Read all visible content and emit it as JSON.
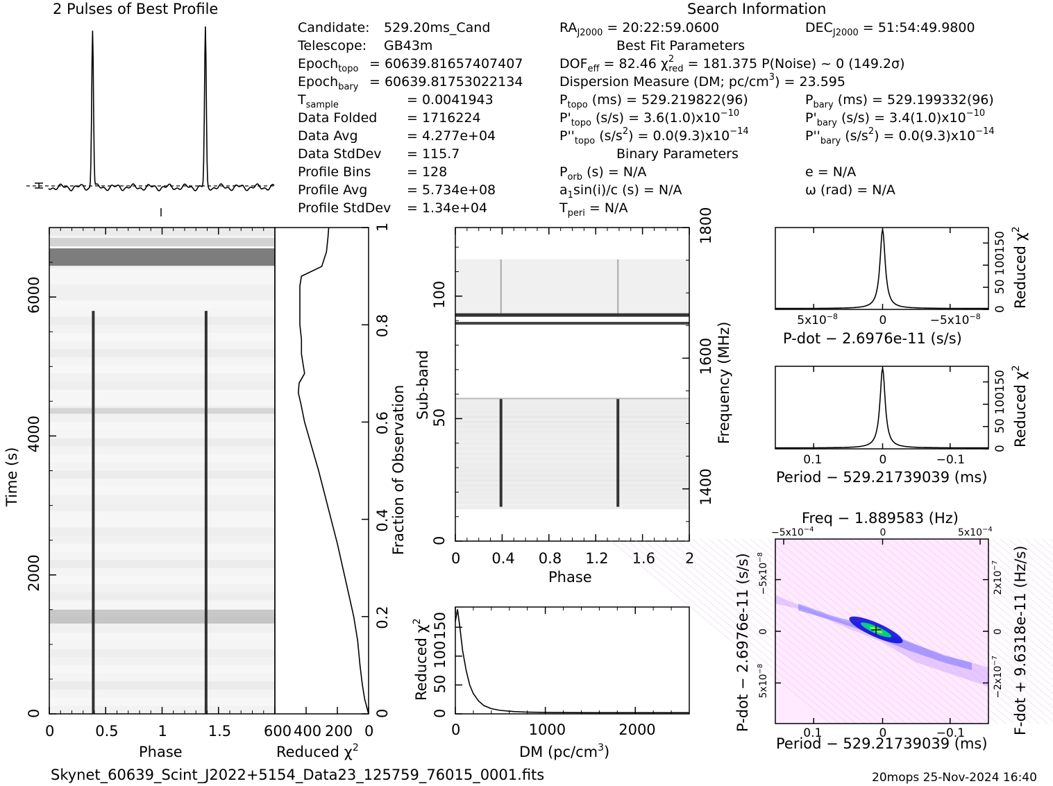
{
  "title_profile": "2 Pulses of Best Profile",
  "title_search": "Search Information",
  "info_left": [
    {
      "label": "Candidate:",
      "value": "529.20ms_Cand"
    },
    {
      "label": "Telescope:",
      "value": "GB43m"
    },
    {
      "label": "Epoch",
      "sub": "topo",
      "value": "= 60639.81657407407"
    },
    {
      "label": "Epoch",
      "sub": "bary",
      "value": "= 60639.81753022134"
    },
    {
      "label": "T",
      "sub": "sample",
      "value": "=   0.0041943"
    },
    {
      "label": "Data Folded",
      "value": "=   1716224"
    },
    {
      "label": "Data Avg",
      "value": "=   4.277e+04"
    },
    {
      "label": "Data StdDev",
      "value": "=   115.7"
    },
    {
      "label": "Profile Bins",
      "value": "=   128"
    },
    {
      "label": "Profile Avg",
      "value": "=   5.734e+08"
    },
    {
      "label": "Profile StdDev",
      "value": "=   1.34e+04"
    }
  ],
  "info_mid": {
    "ra": "= 20:22:59.0600",
    "best_fit_header": "Best Fit Parameters",
    "dof": "= 82.46",
    "chi2": "= 181.375",
    "pnoise": "P(Noise) ~ 0    (149.2σ)",
    "dm_line": "Dispersion Measure (DM; pc/cm",
    "dm_value": ") = 23.595",
    "ptopo": "(ms) =  529.219822(96)",
    "pdtopo": "(s/s) =  3.6(1.0)x10",
    "pdtopo_exp": "−10",
    "pddtopo": ") = 0.0(9.3)x10",
    "pddtopo_exp": "−14",
    "binary_header": "Binary Parameters",
    "porb": "(s) = N/A",
    "a1": "a",
    "a1_rest": "sin(i)/c (s) = N/A",
    "tperi": "= N/A"
  },
  "info_right": {
    "dec": "= 51:54:49.9800",
    "pbary": "(ms) =  529.199332(96)",
    "pdbary": "(s/s) =  3.4(1.0)x10",
    "pdbary_exp": "−10",
    "pddbary": ") = 0.0(9.3)x10",
    "pddbary_exp": "−14",
    "e": "e = N/A",
    "omega": "ω (rad) = N/A"
  },
  "footer_file": "Skynet_60639_Scint_J2022+5154_Data23_125759_76015_0001.fits",
  "footer_stamp": "20mops 25-Nov-2024 16:40",
  "colors": {
    "trace": "#000000",
    "bg": "#ffffff",
    "pulse": "#222222",
    "pp_core": "#00e070",
    "pp_mid": "#0000ff",
    "pp_outer": "#ffd8ff"
  },
  "chart_data": [
    {
      "type": "line",
      "name": "profile",
      "x_phase_peaks": [
        0.39,
        1.39
      ],
      "note_text": "",
      "xlim": [
        0,
        2
      ]
    },
    {
      "type": "heatmap",
      "name": "time-phase",
      "xlabel": "Phase",
      "ylabel": "Time (s)",
      "xlim": [
        0,
        2
      ],
      "ylim": [
        0,
        7000
      ],
      "xticks": [
        "0",
        "0.5",
        "1",
        "1.5"
      ],
      "yticks": [
        "0",
        "2000",
        "4000",
        "6000"
      ],
      "pulse_phases": [
        0.39,
        1.39
      ],
      "pulse_end_time": 5800
    },
    {
      "type": "line",
      "name": "reduced-chi2-vs-time",
      "xlabel": "Reduced χ",
      "ylabel": "Fraction of Observation",
      "xlim": [
        600,
        0
      ],
      "ylim": [
        0,
        1
      ],
      "xticks": [
        "600",
        "400",
        "200",
        "0"
      ],
      "yticks": [
        "0",
        "0.2",
        "0.4",
        "0.6",
        "0.8",
        "1"
      ],
      "fraction": [
        0.0,
        0.03,
        0.06,
        0.1,
        0.15,
        0.2,
        0.25,
        0.3,
        0.35,
        0.4,
        0.45,
        0.5,
        0.55,
        0.6,
        0.64,
        0.66,
        0.68,
        0.7,
        0.72,
        0.74,
        0.77,
        0.8,
        0.84,
        0.88,
        0.9,
        0.92,
        0.95,
        0.98,
        1.0
      ],
      "chi2": [
        0,
        25,
        40,
        55,
        70,
        95,
        130,
        165,
        200,
        240,
        280,
        320,
        365,
        410,
        435,
        450,
        445,
        410,
        420,
        430,
        430,
        440,
        440,
        440,
        430,
        300,
        270,
        260,
        255
      ]
    },
    {
      "type": "heatmap",
      "name": "subband-phase",
      "xlabel": "Phase",
      "ylabel": "Sub-band",
      "y2label": "Frequency (MHz)",
      "xlim": [
        0,
        2
      ],
      "ylim": [
        0,
        128
      ],
      "xticks": [
        "0",
        "0.4",
        "0.8",
        "1.2",
        "1.6",
        "2"
      ],
      "yticks": [
        "0",
        "50",
        "100"
      ],
      "y2ticks": [
        "1400",
        "1600",
        "1800"
      ],
      "pulse_phases": [
        0.39,
        1.39
      ],
      "pulse_subband_range": [
        14,
        58
      ]
    },
    {
      "type": "line",
      "name": "dm-chi2",
      "xlabel": "DM (pc/cm",
      "ylabel": "Reduced χ",
      "xlim": [
        0,
        2600
      ],
      "ylim": [
        0,
        185
      ],
      "xticks": [
        "0",
        "1000",
        "2000"
      ],
      "yticks": [
        "0",
        "50",
        "100",
        "150"
      ],
      "x": [
        0,
        24,
        50,
        80,
        120,
        160,
        200,
        260,
        320,
        400,
        500,
        650,
        800,
        1000,
        1500,
        2000,
        2600
      ],
      "y": [
        160,
        181,
        150,
        110,
        75,
        50,
        35,
        22,
        14,
        9,
        6,
        4,
        3,
        2.5,
        2,
        2,
        2
      ]
    },
    {
      "type": "line",
      "name": "pdot-chi2",
      "xlabel": "P-dot − 2.6976e-11 (s/s)",
      "ylabel": "Reduced χ",
      "xticks": [
        "5x10",
        "0",
        "−5x10"
      ],
      "xtick_exp": "−8",
      "yticks": [
        "0",
        "50",
        "100",
        "150"
      ],
      "ylim": [
        0,
        185
      ],
      "peak": 181
    },
    {
      "type": "line",
      "name": "period-chi2",
      "xlabel": "Period − 529.21739039 (ms)",
      "ylabel": "Reduced χ",
      "xticks": [
        "0.1",
        "0",
        "−0.1"
      ],
      "yticks": [
        "0",
        "50",
        "100",
        "150"
      ],
      "ylim": [
        0,
        185
      ],
      "peak": 181
    },
    {
      "type": "heatmap",
      "name": "period-pdot",
      "title": "Freq − 1.889583 (Hz)",
      "xlabel": "Period − 529.21739039 (ms)",
      "ylabel": "P-dot − 2.6976e-11 (s/s)",
      "y2label": "F-dot + 9.6318e-11 (Hz/s)",
      "xticks": [
        "0.1",
        "0",
        "−0.1"
      ],
      "top_ticks": [
        "−5x10",
        "0",
        "5x10"
      ],
      "top_exp": "−4",
      "yticks": [
        "−5x10",
        "0",
        "5x10"
      ],
      "ytick_exp": "−8",
      "y2ticks": [
        "2x10",
        "0",
        "−2x10"
      ],
      "y2tick_exp": "−7"
    }
  ]
}
